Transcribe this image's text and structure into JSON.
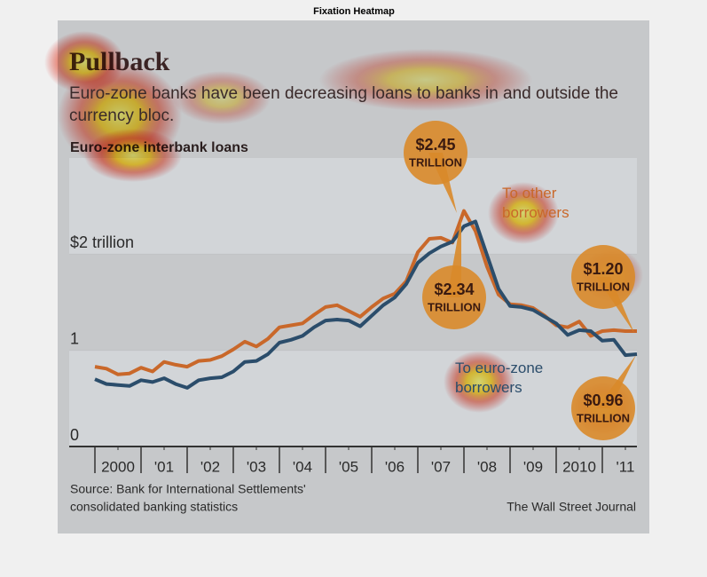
{
  "heatmap_title": "Fixation Heatmap",
  "chart_data": {
    "type": "line",
    "title": "Pullback",
    "subtitle": "Euro-zone banks have been decreasing loans to banks in and outside the currency bloc.",
    "y_label": "Euro-zone interbank loans",
    "x": [
      2000,
      2000.25,
      2000.5,
      2000.75,
      2001,
      2001.25,
      2001.5,
      2001.75,
      2002,
      2002.25,
      2002.5,
      2002.75,
      2003,
      2003.25,
      2003.5,
      2003.75,
      2004,
      2004.25,
      2004.5,
      2004.75,
      2005,
      2005.25,
      2005.5,
      2005.75,
      2006,
      2006.25,
      2006.5,
      2006.75,
      2007,
      2007.25,
      2007.5,
      2007.75,
      2008,
      2008.25,
      2008.5,
      2008.75,
      2009,
      2009.25,
      2009.5,
      2009.75,
      2010,
      2010.25,
      2010.5,
      2010.75,
      2011,
      2011.25,
      2011.5,
      2011.75
    ],
    "series": [
      {
        "name": "To other borrowers",
        "color": "#c9682a",
        "values": [
          0.83,
          0.81,
          0.75,
          0.76,
          0.82,
          0.78,
          0.88,
          0.85,
          0.83,
          0.89,
          0.9,
          0.94,
          1.01,
          1.09,
          1.04,
          1.12,
          1.24,
          1.26,
          1.28,
          1.37,
          1.45,
          1.47,
          1.41,
          1.35,
          1.45,
          1.54,
          1.59,
          1.72,
          2.02,
          2.16,
          2.17,
          2.12,
          2.45,
          2.24,
          1.87,
          1.58,
          1.48,
          1.47,
          1.44,
          1.36,
          1.26,
          1.24,
          1.3,
          1.15,
          1.2,
          1.21,
          1.2,
          1.2
        ]
      },
      {
        "name": "To euro-zone borrowers",
        "color": "#2b4d6b",
        "values": [
          0.7,
          0.65,
          0.64,
          0.63,
          0.69,
          0.67,
          0.71,
          0.65,
          0.61,
          0.69,
          0.71,
          0.72,
          0.78,
          0.88,
          0.89,
          0.96,
          1.08,
          1.11,
          1.15,
          1.24,
          1.31,
          1.32,
          1.31,
          1.25,
          1.36,
          1.47,
          1.55,
          1.69,
          1.91,
          2.01,
          2.08,
          2.13,
          2.29,
          2.34,
          1.99,
          1.64,
          1.46,
          1.45,
          1.42,
          1.35,
          1.28,
          1.16,
          1.21,
          1.2,
          1.1,
          1.11,
          0.95,
          0.96
        ]
      }
    ],
    "xlim": [
      2000,
      2011.75
    ],
    "xticks": [
      {
        "value": 2000.5,
        "label": "2000"
      },
      {
        "value": 2001.5,
        "label": "'01"
      },
      {
        "value": 2002.5,
        "label": "'02"
      },
      {
        "value": 2003.5,
        "label": "'03"
      },
      {
        "value": 2004.5,
        "label": "'04"
      },
      {
        "value": 2005.5,
        "label": "'05"
      },
      {
        "value": 2006.5,
        "label": "'06"
      },
      {
        "value": 2007.5,
        "label": "'07"
      },
      {
        "value": 2008.5,
        "label": "'08"
      },
      {
        "value": 2009.5,
        "label": "'09"
      },
      {
        "value": 2010.5,
        "label": "2010"
      },
      {
        "value": 2011.5,
        "label": "'11"
      }
    ],
    "ylim": [
      0,
      3
    ],
    "yticks": [
      0,
      1,
      {
        "value": 2,
        "label": "$2 trillion"
      }
    ],
    "annotations": [
      {
        "amount": "$2.45",
        "unit": "TRILLION"
      },
      {
        "amount": "$2.34",
        "unit": "TRILLION"
      },
      {
        "amount": "$1.20",
        "unit": "TRILLION"
      },
      {
        "amount": "$0.96",
        "unit": "TRILLION"
      }
    ],
    "source": [
      "Source: Bank for International Settlements'",
      "consolidated banking statistics"
    ],
    "credit": "The Wall Street Journal"
  }
}
